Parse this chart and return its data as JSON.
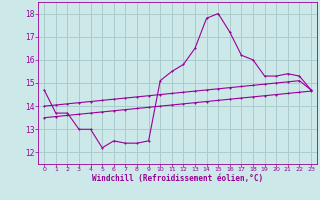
{
  "xlabel": "Windchill (Refroidissement éolien,°C)",
  "background_color": "#cce8e8",
  "grid_color": "#aacccc",
  "line_color": "#990099",
  "xlim": [
    -0.5,
    23.5
  ],
  "ylim": [
    11.5,
    18.5
  ],
  "yticks": [
    12,
    13,
    14,
    15,
    16,
    17,
    18
  ],
  "xticks": [
    0,
    1,
    2,
    3,
    4,
    5,
    6,
    7,
    8,
    9,
    10,
    11,
    12,
    13,
    14,
    15,
    16,
    17,
    18,
    19,
    20,
    21,
    22,
    23
  ],
  "curve1_x": [
    0,
    1,
    2,
    3,
    4,
    5,
    6,
    7,
    8,
    9,
    10,
    11,
    12,
    13,
    14,
    15,
    16,
    17,
    18,
    19,
    20,
    21,
    22,
    23
  ],
  "curve1_y": [
    14.7,
    13.7,
    13.7,
    13.0,
    13.0,
    12.2,
    12.5,
    12.4,
    12.4,
    12.5,
    15.1,
    15.5,
    15.8,
    16.5,
    17.8,
    18.0,
    17.2,
    16.2,
    16.0,
    15.3,
    15.3,
    15.4,
    15.3,
    14.7
  ],
  "curve2_x": [
    0,
    1,
    2,
    3,
    4,
    5,
    6,
    7,
    8,
    9,
    10,
    11,
    12,
    13,
    14,
    15,
    16,
    17,
    18,
    19,
    20,
    21,
    22,
    23
  ],
  "curve2_y": [
    14.0,
    14.05,
    14.1,
    14.15,
    14.2,
    14.25,
    14.3,
    14.35,
    14.4,
    14.45,
    14.5,
    14.55,
    14.6,
    14.65,
    14.7,
    14.75,
    14.8,
    14.85,
    14.9,
    14.95,
    15.0,
    15.05,
    15.1,
    14.7
  ],
  "curve3_x": [
    0,
    1,
    2,
    3,
    4,
    5,
    6,
    7,
    8,
    9,
    10,
    11,
    12,
    13,
    14,
    15,
    16,
    17,
    18,
    19,
    20,
    21,
    22,
    23
  ],
  "curve3_y": [
    13.5,
    13.55,
    13.6,
    13.65,
    13.7,
    13.75,
    13.8,
    13.85,
    13.9,
    13.95,
    14.0,
    14.05,
    14.1,
    14.15,
    14.2,
    14.25,
    14.3,
    14.35,
    14.4,
    14.45,
    14.5,
    14.55,
    14.6,
    14.65
  ]
}
